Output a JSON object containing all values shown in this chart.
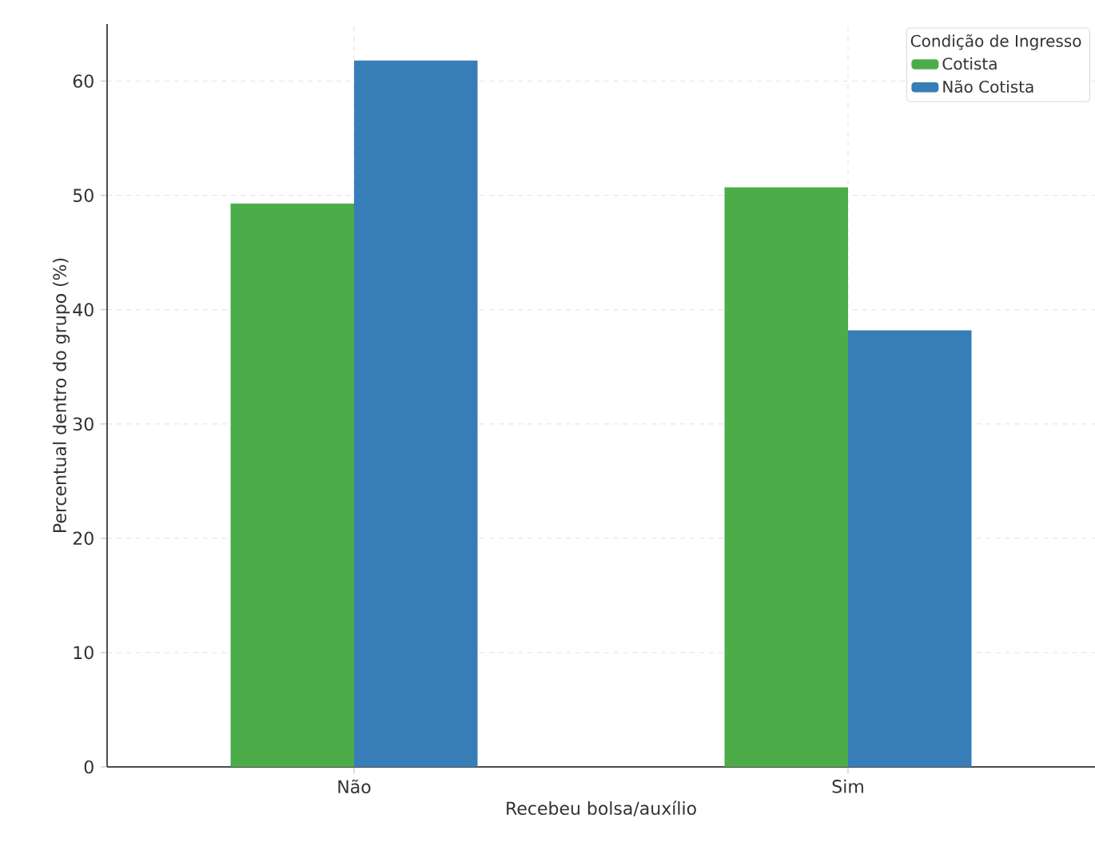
{
  "chart_data": {
    "type": "bar",
    "xlabel": "Recebeu bolsa/auxílio",
    "ylabel": "Percentual dentro do grupo (%)",
    "legend_title": "Condição de Ingresso",
    "categories": [
      "Não",
      "Sim"
    ],
    "series": [
      {
        "name": "Cotista",
        "color": "#4dac4a",
        "values": [
          49.3,
          50.7
        ]
      },
      {
        "name": "Não Cotista",
        "color": "#377eb8",
        "values": [
          61.8,
          38.2
        ]
      }
    ],
    "ylim": [
      0,
      65
    ],
    "yticks": [
      0,
      10,
      20,
      30,
      40,
      50,
      60
    ],
    "grid": true,
    "legend": "top right"
  }
}
